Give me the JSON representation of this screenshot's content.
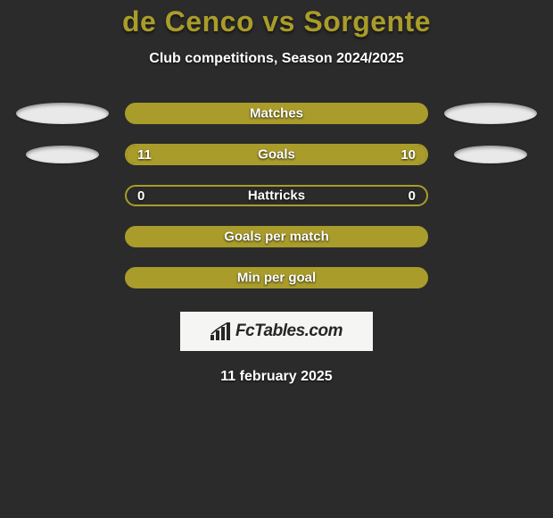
{
  "title": "de Cenco vs Sorgente",
  "subtitle": "Club competitions, Season 2024/2025",
  "accent_color": "#a99c2a",
  "background_color": "#2b2b2b",
  "text_color": "#ffffff",
  "rows": [
    {
      "type": "filled",
      "label": "Matches",
      "left_val": "",
      "right_val": "",
      "show_side_ellipses": true,
      "ellipse_size": "big",
      "fill_left_pct": 100,
      "fill_right_pct": 0
    },
    {
      "type": "split",
      "label": "Goals",
      "left_val": "11",
      "right_val": "10",
      "show_side_ellipses": true,
      "ellipse_size": "small",
      "fill_left_pct": 52,
      "fill_right_pct": 48
    },
    {
      "type": "empty",
      "label": "Hattricks",
      "left_val": "0",
      "right_val": "0",
      "show_side_ellipses": false,
      "fill_left_pct": 0,
      "fill_right_pct": 0
    },
    {
      "type": "filled",
      "label": "Goals per match",
      "left_val": "",
      "right_val": "",
      "show_side_ellipses": false,
      "fill_left_pct": 100,
      "fill_right_pct": 0
    },
    {
      "type": "filled",
      "label": "Min per goal",
      "left_val": "",
      "right_val": "",
      "show_side_ellipses": false,
      "fill_left_pct": 100,
      "fill_right_pct": 0
    }
  ],
  "logo_text": "FcTables.com",
  "date": "11 february 2025"
}
